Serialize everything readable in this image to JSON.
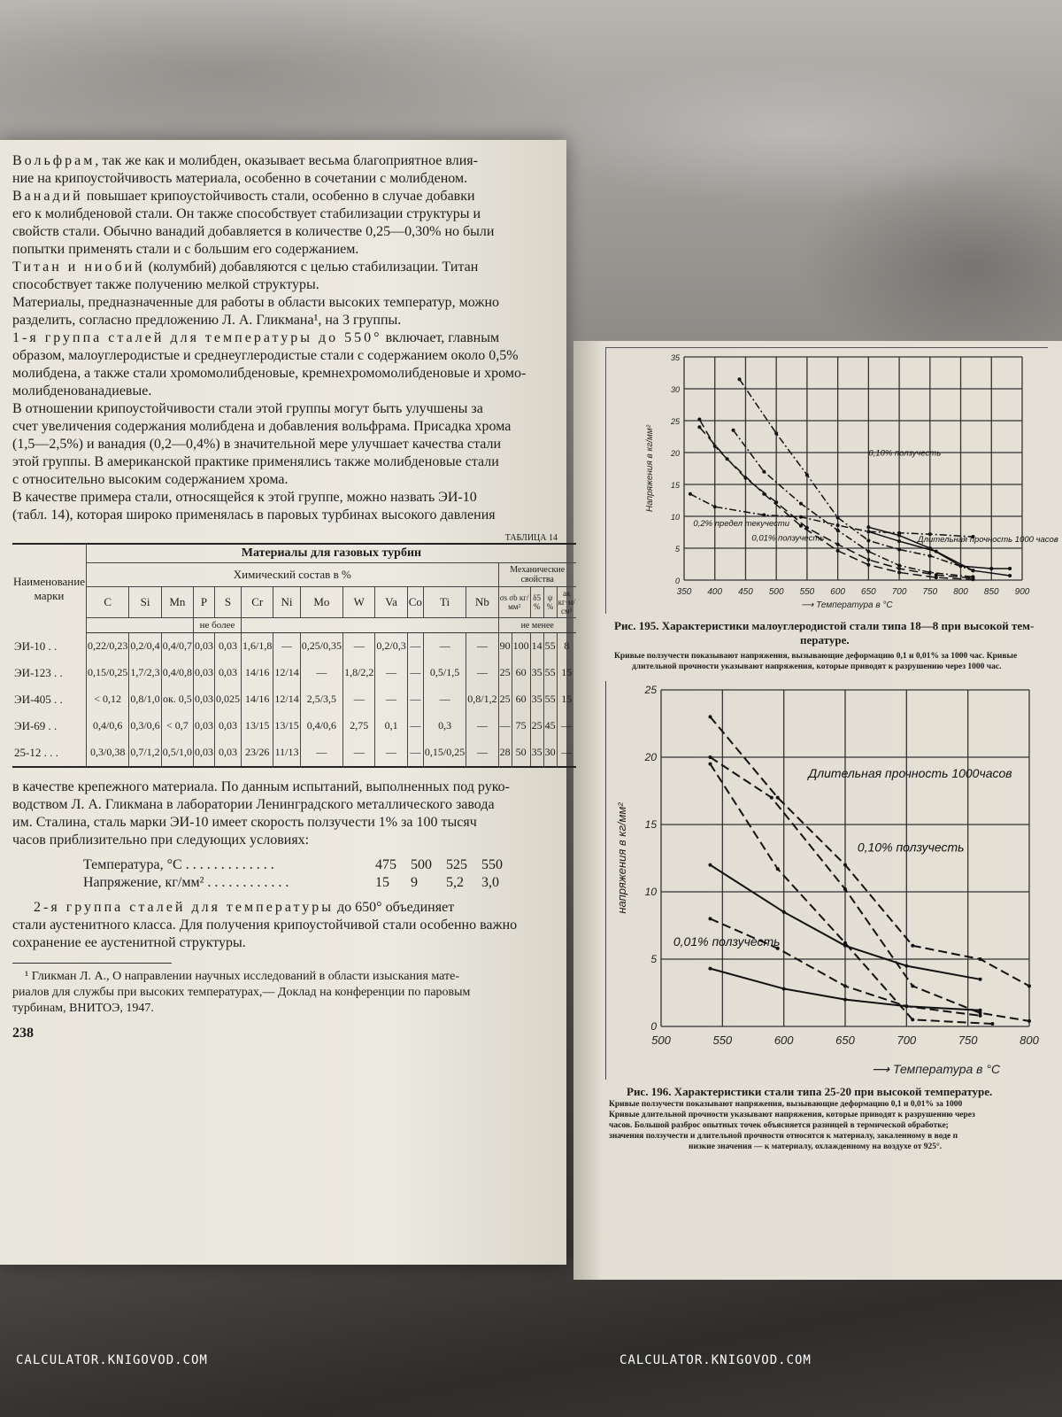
{
  "left_page": {
    "top_paragraphs": [
      [
        {
          "t": "Вольфрам",
          "sp": true
        },
        {
          "t": ", так же как и молибден, оказывает весьма благоприятное влия-"
        }
      ],
      [
        {
          "t": "ние на крипоустойчивость материала, особенно в сочетании с молибденом."
        }
      ],
      [
        {
          "t": "Ванадий",
          "sp": true
        },
        {
          "t": " повышает крипоустойчивость стали, особенно в случае добавки"
        }
      ],
      [
        {
          "t": "его к молибденовой стали. Он также способствует стабилизации структуры и"
        }
      ],
      [
        {
          "t": "свойств стали. Обычно ванадий добавляется в количестве 0,25—0,30% но были"
        }
      ],
      [
        {
          "t": "попытки применять стали и с большим его содержанием."
        }
      ],
      [
        {
          "t": "Титан и ниобий",
          "sp": true
        },
        {
          "t": " (колумбий) добавляются с целью стабилизации. Титан"
        }
      ],
      [
        {
          "t": "способствует также получению мелкой структуры."
        }
      ],
      [
        {
          "t": "Материалы, предназначенные для работы в области высоких температур, можно"
        }
      ],
      [
        {
          "t": "разделить, согласно предложению Л. А. Гликмана¹, на 3 группы."
        }
      ],
      [
        {
          "t": "1-я группа сталей для температуры до 550°",
          "sp": true
        },
        {
          "t": " включает, главным"
        }
      ],
      [
        {
          "t": "образом, малоуглеродистые и среднеуглеродистые стали с содержанием около 0,5%"
        }
      ],
      [
        {
          "t": "молибдена, а также стали хромомолибденовые, кремнехромомолибденовые и хромо-"
        }
      ],
      [
        {
          "t": "молибденованадиевые."
        }
      ],
      [
        {
          "t": "В отношении крипоустойчивости стали этой группы могут быть улучшены за"
        }
      ],
      [
        {
          "t": "счет увеличения содержания молибдена и добавления вольфрама. Присадка хрома"
        }
      ],
      [
        {
          "t": "(1,5—2,5%) и ванадия (0,2—0,4%) в значительной мере улучшает качества стали"
        }
      ],
      [
        {
          "t": "этой группы. В американской практике применялись также молибденовые стали"
        }
      ],
      [
        {
          "t": "с относительно высоким содержанием хрома."
        }
      ],
      [
        {
          "t": "В качестве примера стали, относящейся к этой группе, можно назвать ЭИ-10"
        }
      ],
      [
        {
          "t": "(табл. 14), которая широко применялась в паровых турбинах высокого давления"
        }
      ]
    ],
    "table": {
      "label": "ТАБЛИЦА 14",
      "title": "Материалы для газовых турбин",
      "name_header": "Наименование марки",
      "chem_header": "Химический состав в %",
      "chem_columns": [
        "C",
        "Si",
        "Mn",
        "P",
        "S",
        "Cr",
        "Ni",
        "Mo",
        "W",
        "Va",
        "Co",
        "Ti",
        "Nb"
      ],
      "not_more": "не более",
      "mech_header": "Механические свойства",
      "mech_columns": [
        "σs  σb кг/мм²",
        "δ5 %",
        "ψ %",
        "ак кг·м/см²"
      ],
      "not_less": "не менее",
      "rows": [
        {
          "name": "ЭИ-10 . .",
          "cells": [
            "0,22/0,23",
            "0,2/0,4",
            "0,4/0,7",
            "0,03",
            "0,03",
            "1,6/1,8",
            "—",
            "0,25/0,35",
            "—",
            "0,2/0,3",
            "—",
            "—",
            "—",
            "90",
            "100",
            "14",
            "55",
            "8"
          ]
        },
        {
          "name": "ЭИ-123 . .",
          "cells": [
            "0,15/0,25",
            "1,7/2,3",
            "0,4/0,8",
            "0,03",
            "0,03",
            "14/16",
            "12/14",
            "—",
            "1,8/2,2",
            "—",
            "—",
            "0,5/1,5",
            "—",
            "25",
            "60",
            "35",
            "55",
            "15"
          ]
        },
        {
          "name": "ЭИ-405 . .",
          "cells": [
            "< 0,12",
            "0,8/1,0",
            "ок. 0,5",
            "0,03",
            "0,025",
            "14/16",
            "12/14",
            "2,5/3,5",
            "—",
            "—",
            "—",
            "—",
            "0,8/1,2",
            "25",
            "60",
            "35",
            "55",
            "15"
          ]
        },
        {
          "name": "ЭИ-69 . .",
          "cells": [
            "0,4/0,6",
            "0,3/0,6",
            "< 0,7",
            "0,03",
            "0,03",
            "13/15",
            "13/15",
            "0,4/0,6",
            "2,75",
            "0,1",
            "—",
            "0,3",
            "—",
            "—",
            "75",
            "25",
            "45",
            "—"
          ]
        },
        {
          "name": "25-12 . . .",
          "cells": [
            "0,3/0,38",
            "0,7/1,2",
            "0,5/1,0",
            "0,03",
            "0,03",
            "23/26",
            "11/13",
            "—",
            "—",
            "—",
            "—",
            "0,15/0,25",
            "—",
            "28",
            "50",
            "35",
            "30",
            "—"
          ]
        }
      ]
    },
    "bottom_lines": [
      "в качестве крепежного материала. По данным испытаний, выполненных под руко-",
      "водством Л. А. Гликмана в лаборатории Ленинградского металлического завода",
      "им. Сталина, сталь марки ЭИ-10 имеет скорость ползучести 1% за 100 тысяч",
      "часов приблизительно при следующих условиях:"
    ],
    "conditions": {
      "temp_label": "Температура, °С . . . . . . . . . . . . .",
      "temps": [
        "475",
        "500",
        "525",
        "550"
      ],
      "stress_label": "Напряжение, кг/мм² . . . . . . . . . . . .",
      "stresses": [
        "15",
        "9",
        "5,2",
        "3,0"
      ]
    },
    "group2": {
      "spaced": "2-я группа сталей для температуры",
      "rest": " до 650° объединяет",
      "lines": [
        "стали аустенитного класса. Для получения крипоустойчивой стали особенно важно",
        "сохранение ее аустенитной структуры."
      ]
    },
    "footnote": [
      "¹ Гликман Л. А., О направлении научных исследований в области изыскания мате-",
      "риалов для службы при высоких температурах,— Доклад на конференции по паровым",
      "турбинам, ВНИТОЭ, 1947."
    ],
    "page_number": "238"
  },
  "right_page": {
    "fig195": {
      "caption": "Рис. 195. Характеристики малоуглеродистой стали типа 18—8 при высокой тем-",
      "caption2": "пературе.",
      "note1": "Кривые ползучести показывают напряжения, вызывающие деформацию 0,1 и 0,01% за 1000 час. Кривые",
      "note2": "длительной прочности указывают напряжения, которые приводят к разрушению через 1000 час."
    },
    "fig196": {
      "caption": "Рис. 196. Характеристики стали типа 25-20 при высокой температуре.",
      "notes": [
        "Кривые ползучести показывают напряжения, вызывающие деформацию 0,1 и 0,01% за 1000",
        "Кривые длительной прочности указывают напряжения, которые приводят к разрушению через",
        "часов. Большой разброс опытных точек объясняется разницей в термической обработке;",
        "значения ползучести и длительной прочности относятся к материалу, закаленному в воде п",
        "низкие значения — к материалу, охлажденному на воздухе от 925°."
      ]
    }
  },
  "chart_data": [
    {
      "type": "line",
      "xlabel": "Температура в °С",
      "ylabel": "Напряжения в кг/мм²",
      "xlim": [
        350,
        900
      ],
      "ylim": [
        0,
        35
      ],
      "xticks": [
        350,
        400,
        450,
        500,
        550,
        600,
        650,
        700,
        750,
        800,
        850,
        900
      ],
      "yticks": [
        0,
        5,
        10,
        15,
        20,
        25,
        30,
        35
      ],
      "grid": true,
      "annotations": [
        "0,10% ползучесть",
        "0,2% предел текучести",
        "0,01% ползучесть",
        "Длительная прочность 1000 часов"
      ],
      "series": [
        {
          "style": "dashdot",
          "x": [
            360,
            400,
            480,
            540,
            600,
            650,
            700,
            750,
            820
          ],
          "y": [
            13.5,
            11.5,
            10.2,
            9.9,
            8.6,
            7.6,
            7.4,
            7.2,
            6.8
          ]
        },
        {
          "style": "dashdot",
          "x": [
            440,
            500,
            550,
            600,
            650,
            700,
            750,
            820
          ],
          "y": [
            31.5,
            23,
            16.5,
            9.8,
            6.2,
            4.8,
            3.8,
            1.5
          ]
        },
        {
          "style": "dashdot",
          "x": [
            430,
            480,
            540,
            600,
            650,
            700,
            750,
            820
          ],
          "y": [
            23.5,
            17,
            12,
            7.8,
            4.5,
            2.3,
            1.2,
            0.5
          ]
        },
        {
          "style": "dashed",
          "x": [
            375,
            400,
            450,
            500,
            550,
            600,
            650,
            700,
            760,
            820
          ],
          "y": [
            25.2,
            21,
            16,
            12.2,
            8.2,
            5.6,
            3.2,
            1.8,
            0.8,
            0.3
          ]
        },
        {
          "style": "dashed",
          "x": [
            375,
            420,
            480,
            540,
            600,
            650,
            700,
            760,
            820
          ],
          "y": [
            24,
            19,
            13.5,
            8.5,
            4.6,
            2.4,
            1.2,
            0.4,
            0.1
          ]
        },
        {
          "style": "solid",
          "x": [
            650,
            700,
            750,
            800,
            850,
            880
          ],
          "y": [
            8.3,
            7,
            5,
            2.2,
            1.8,
            1.8
          ]
        },
        {
          "style": "solid",
          "x": [
            650,
            700,
            760,
            820,
            880
          ],
          "y": [
            7.6,
            6.1,
            4.5,
            1.5,
            0.7
          ]
        }
      ]
    },
    {
      "type": "line",
      "xlabel": "Температура в °С",
      "ylabel": "напряжения в кг/мм²",
      "xlim": [
        500,
        800
      ],
      "ylim": [
        0,
        25
      ],
      "xticks": [
        500,
        550,
        600,
        650,
        700,
        750,
        800
      ],
      "yticks": [
        0,
        5,
        10,
        15,
        20,
        25
      ],
      "grid": true,
      "annotations": [
        "Длительная прочность 1000часов",
        "0,10% ползучесть",
        "0,01% ползучесть"
      ],
      "series": [
        {
          "style": "dashed",
          "x": [
            540,
            595,
            650,
            705,
            760,
            800
          ],
          "y": [
            23,
            17,
            12,
            6,
            5,
            3
          ]
        },
        {
          "style": "dashed",
          "x": [
            540,
            590,
            650,
            705,
            760,
            800
          ],
          "y": [
            20,
            17,
            10.2,
            3,
            1,
            0.4
          ]
        },
        {
          "style": "dashed",
          "x": [
            540,
            595,
            650,
            705,
            770
          ],
          "y": [
            19.5,
            11.7,
            6.2,
            0.5,
            0.2
          ]
        },
        {
          "style": "solid",
          "x": [
            540,
            600,
            650,
            700,
            760
          ],
          "y": [
            12,
            8.5,
            6,
            4.5,
            3.5
          ]
        },
        {
          "style": "dashed",
          "x": [
            540,
            595,
            650,
            700,
            760
          ],
          "y": [
            8,
            5.8,
            3,
            1.5,
            0.8
          ]
        },
        {
          "style": "solid",
          "x": [
            540,
            600,
            650,
            700,
            760
          ],
          "y": [
            4.3,
            2.8,
            2,
            1.5,
            1.2
          ]
        }
      ]
    }
  ],
  "watermarks": [
    "CALCULATOR.KNIGOVOD.COM",
    "CALCULATOR.KNIGOVOD.COM"
  ]
}
